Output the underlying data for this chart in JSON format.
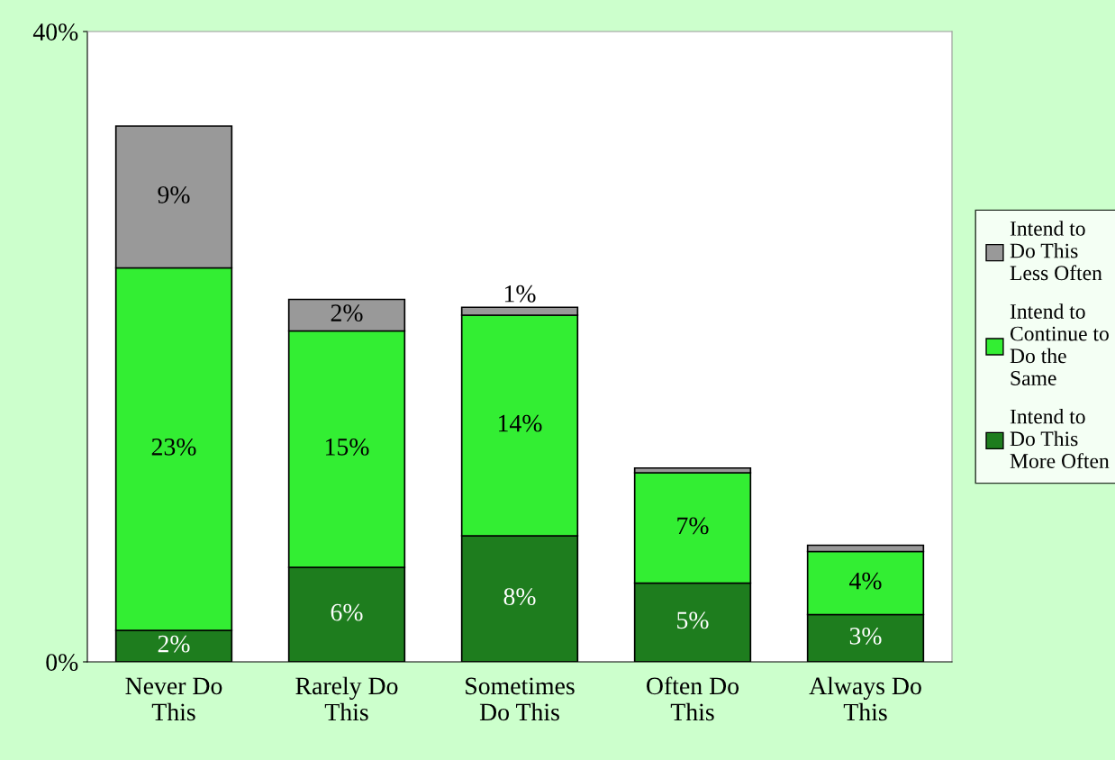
{
  "chart_data": {
    "type": "bar",
    "stacked": true,
    "categories": [
      "Never Do\nThis",
      "Rarely Do\nThis",
      "Sometimes\nDo This",
      "Often Do\nThis",
      "Always Do\nThis"
    ],
    "series": [
      {
        "name": "Intend to\nDo This\nMore Often",
        "color": "#1e7d1e",
        "values": [
          2,
          6,
          8,
          5,
          3
        ],
        "value_labels": [
          "2%",
          "6%",
          "8%",
          "5%",
          "3%"
        ]
      },
      {
        "name": "Intend to\nContinue to\nDo the\nSame",
        "color": "#33ee33",
        "values": [
          23,
          15,
          14,
          7,
          4
        ],
        "value_labels": [
          "23%",
          "15%",
          "14%",
          "7%",
          "4%"
        ]
      },
      {
        "name": "Intend to\nDo This\nLess Often",
        "color": "#999999",
        "values": [
          9,
          2,
          0.5,
          0.3,
          0.4
        ],
        "value_labels": [
          "9%",
          "2%",
          "1%",
          null,
          null
        ]
      }
    ],
    "ylim": [
      0,
      40
    ],
    "yticks": [
      {
        "value": 0,
        "label": "0%"
      },
      {
        "value": 40,
        "label": "40%"
      }
    ],
    "grid": false,
    "legend": "right"
  }
}
